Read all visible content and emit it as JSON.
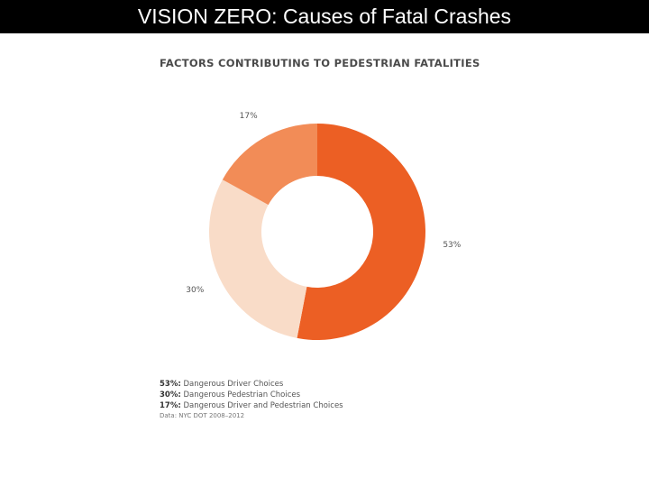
{
  "page": {
    "title": "VISION ZERO: Causes of Fatal Crashes"
  },
  "chart_data": {
    "type": "pie",
    "title": "FACTORS CONTRIBUTING TO PEDESTRIAN FATALITIES",
    "categories": [
      "Dangerous Driver Choices",
      "Dangerous Pedestrian Choices",
      "Dangerous Driver and Pedestrian Choices"
    ],
    "values": [
      53,
      30,
      17
    ],
    "data_labels": [
      "53%",
      "30%",
      "17%"
    ],
    "colors": [
      "#ec5f24",
      "#f9dcc8",
      "#f28c57"
    ],
    "legend": [
      {
        "pct": "53%:",
        "label": "Dangerous Driver Choices"
      },
      {
        "pct": "30%:",
        "label": "Dangerous Pedestrian Choices"
      },
      {
        "pct": "17%:",
        "label": "Dangerous Driver and Pedestrian Choices"
      }
    ],
    "source": "Data: NYC DOT 2008–2012",
    "legend_position": "bottom-left",
    "donut": true
  }
}
